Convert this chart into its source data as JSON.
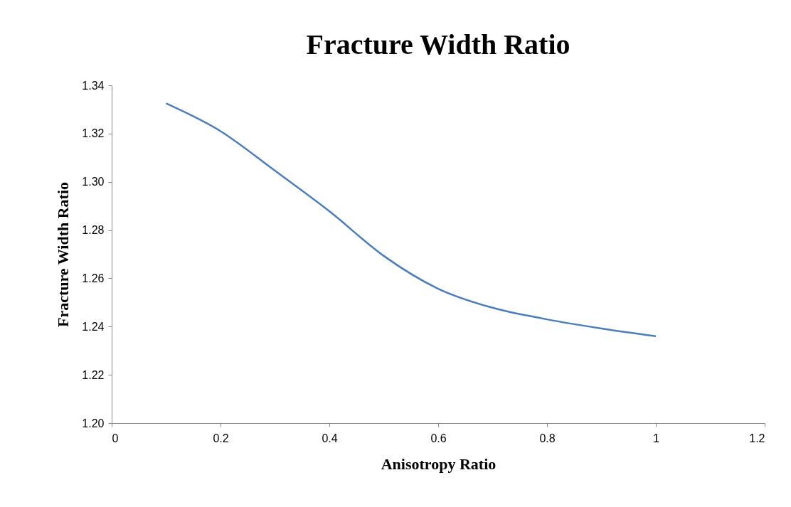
{
  "chart_data": {
    "type": "line",
    "title": "Fracture Width Ratio",
    "xlabel": "Anisotropy Ratio",
    "ylabel": "Fracture Width Ratio",
    "x": [
      0.1,
      0.2,
      0.3,
      0.4,
      0.5,
      0.6,
      0.7,
      0.8,
      0.9,
      1.0
    ],
    "series": [
      {
        "color": "#4a7ebb",
        "values": [
          1.3325,
          1.321,
          1.3046,
          1.2878,
          1.2693,
          1.2557,
          1.2478,
          1.243,
          1.2392,
          1.236
        ]
      }
    ],
    "xlim": [
      0,
      1.2
    ],
    "xticks": [
      0,
      0.2,
      0.4,
      0.6,
      0.8,
      1,
      1.2
    ],
    "ylim": [
      1.2,
      1.34
    ],
    "yticks": [
      {
        "value": 1.2,
        "label": "1.20"
      },
      {
        "value": 1.22,
        "label": "1.22"
      },
      {
        "value": 1.24,
        "label": "1.24"
      },
      {
        "value": 1.26,
        "label": "1.26"
      },
      {
        "value": 1.28,
        "label": "1.28"
      },
      {
        "value": 1.3,
        "label": "1.30"
      },
      {
        "value": 1.32,
        "label": "1.32"
      },
      {
        "value": 1.34,
        "label": "1.34"
      }
    ],
    "grid": false,
    "marker": "none",
    "line_style": "solid"
  }
}
